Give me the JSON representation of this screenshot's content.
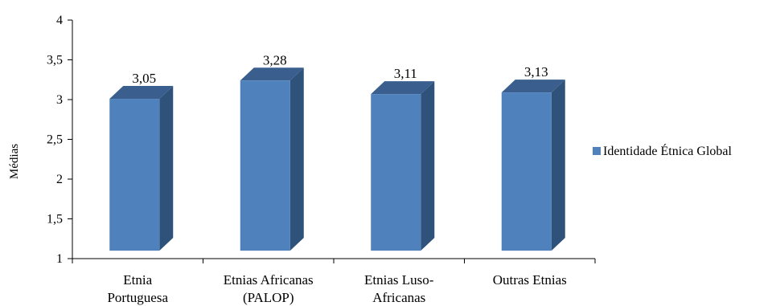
{
  "chart_data": {
    "type": "bar",
    "title": "",
    "xlabel": "",
    "ylabel": "Médias",
    "ylim": [
      1,
      4
    ],
    "yticks": [
      "1",
      "1,5",
      "2",
      "2,5",
      "3",
      "3,5",
      "4"
    ],
    "tick_values": [
      1,
      1.5,
      2,
      2.5,
      3,
      3.5,
      4
    ],
    "categories": [
      [
        "Etnia",
        "Portuguesa"
      ],
      [
        "Etnias Africanas",
        "(PALOP)"
      ],
      [
        "Etnias Luso-",
        "Africanas"
      ],
      [
        "Outras Etnias"
      ]
    ],
    "series": [
      {
        "name": "Identidade Étnica Global",
        "values": [
          3.05,
          3.28,
          3.11,
          3.13
        ],
        "labels": [
          "3,05",
          "3,28",
          "3,11",
          "3,13"
        ]
      }
    ],
    "legend_position": "right",
    "grid": false,
    "bar_3d": true,
    "colors": {
      "front": "#4f81bd",
      "side": "#2f527b",
      "top": "#3a5f8f"
    }
  }
}
